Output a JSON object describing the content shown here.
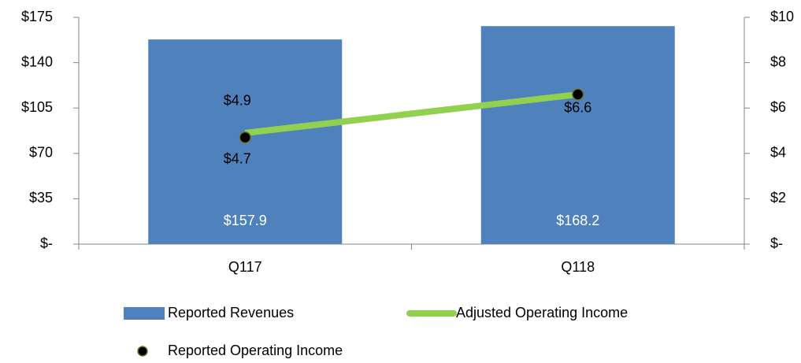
{
  "chart_data": {
    "type": "bar-line",
    "categories": [
      "Q117",
      "Q118"
    ],
    "series": [
      {
        "name": "Reported Revenues",
        "type": "bar",
        "color": "#4f81bd",
        "values": [
          157.9,
          168.2
        ],
        "value_labels": [
          "$157.9",
          "$168.2"
        ]
      },
      {
        "name": "Adjusted Operating Income",
        "type": "line",
        "axis": "y2",
        "color": "#92d050",
        "values": [
          4.9,
          6.6
        ],
        "value_labels": [
          "$4.9",
          null
        ]
      },
      {
        "name": "Reported Operating Income",
        "type": "scatter",
        "axis": "y2",
        "color": "#000000",
        "values": [
          4.7,
          6.6
        ],
        "value_labels": [
          "$4.7",
          "$6.6"
        ]
      }
    ],
    "ylim": [
      0,
      175
    ],
    "yticks": [
      {
        "value": 0,
        "label": "$-"
      },
      {
        "value": 35,
        "label": "$35"
      },
      {
        "value": 70,
        "label": "$70"
      },
      {
        "value": 105,
        "label": "$105"
      },
      {
        "value": 140,
        "label": "$140"
      },
      {
        "value": 175,
        "label": "$175"
      }
    ],
    "y2lim": [
      0,
      10
    ],
    "y2ticks": [
      {
        "value": 0,
        "label": "$-"
      },
      {
        "value": 2,
        "label": "$2"
      },
      {
        "value": 4,
        "label": "$4"
      },
      {
        "value": 6,
        "label": "$6"
      },
      {
        "value": 8,
        "label": "$8"
      },
      {
        "value": 10,
        "label": "$10"
      }
    ],
    "legend": "bottom"
  }
}
